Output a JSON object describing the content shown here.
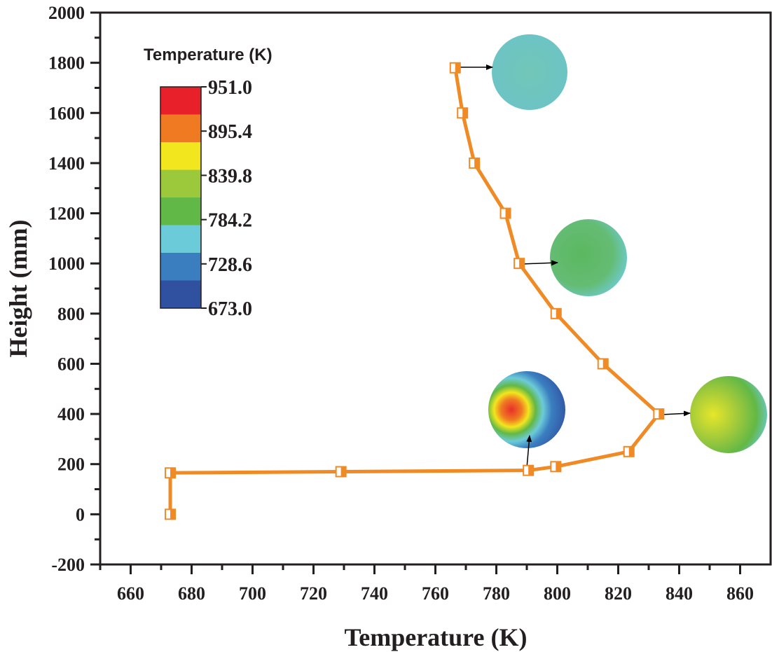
{
  "chart_data": {
    "type": "line",
    "xlabel": "Temperature (K)",
    "ylabel": "Height (mm)",
    "xlim": [
      650,
      870
    ],
    "ylim": [
      -200,
      2000
    ],
    "xticks": [
      660,
      680,
      700,
      720,
      740,
      760,
      780,
      800,
      820,
      840,
      860
    ],
    "yticks": [
      -200,
      0,
      200,
      400,
      600,
      800,
      1000,
      1200,
      1400,
      1600,
      1800,
      2000
    ],
    "grid": false,
    "series": [
      {
        "color": "#f08a24",
        "marker": "half-filled-square",
        "x": [
          673,
          673,
          729,
          790.5,
          799.5,
          823.5,
          833.3,
          815,
          799.6,
          787.5,
          783,
          772.8,
          768.9,
          766.5
        ],
        "y": [
          0,
          165,
          170,
          175,
          190,
          250,
          400,
          600,
          800,
          1000,
          1200,
          1400,
          1600,
          1780
        ]
      }
    ],
    "colorbar": {
      "title": "Temperature (K)",
      "labels": [
        "951.0",
        "895.4",
        "839.8",
        "784.2",
        "728.6",
        "673.0"
      ],
      "colors": [
        "#e8202a",
        "#f07a22",
        "#f2e61e",
        "#9cc83c",
        "#62b846",
        "#6ccbd8",
        "#3a7ec0",
        "#3050a0"
      ]
    },
    "insets": [
      {
        "at_y": 1780,
        "description_colors": [
          "#6cc4b8",
          "#72c6bc"
        ]
      },
      {
        "at_y": 1000,
        "description_colors": [
          "#62b866",
          "#6cc8bc"
        ]
      },
      {
        "at_y": 175,
        "description_colors": [
          "#e8402a",
          "#f2e61e",
          "#62b846",
          "#6ccbd8",
          "#3050a0"
        ]
      },
      {
        "at_y": 400,
        "description_colors": [
          "#e6e62a",
          "#62b846",
          "#6ccbd8"
        ]
      }
    ]
  }
}
